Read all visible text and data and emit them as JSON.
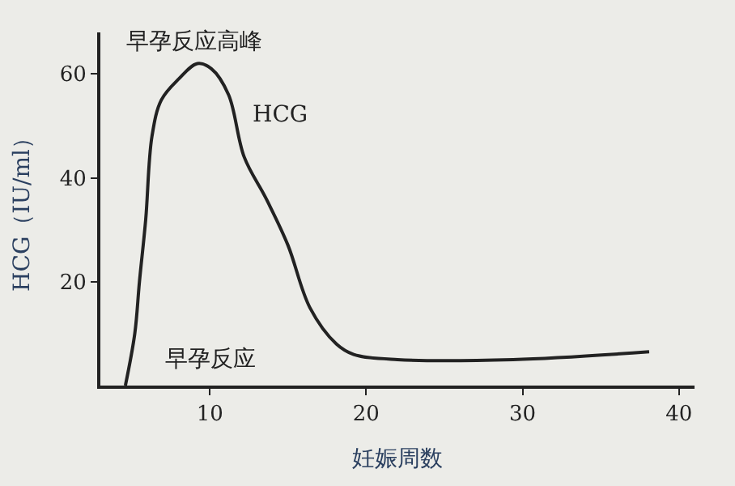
{
  "chart_data": {
    "type": "line",
    "xlabel": "妊娠周数",
    "ylabel": "HCG（IU/ml）",
    "x": [
      4.6,
      5.2,
      5.5,
      5.9,
      6.3,
      6.9,
      8.0,
      9.2,
      10.1,
      11.2,
      12.2,
      13.6,
      15.0,
      16.4,
      18.1,
      19.2,
      22,
      29.4,
      38.1
    ],
    "series": [
      {
        "name": null,
        "color": "#222222",
        "values": [
          0,
          10,
          20,
          32,
          48,
          55,
          59,
          62,
          61,
          56,
          44,
          36,
          27,
          15,
          8,
          6,
          5,
          5,
          6.5
        ]
      }
    ],
    "xlim": [
      3,
      41
    ],
    "ylim": [
      0,
      68
    ],
    "xticks": [
      10,
      20,
      30,
      40
    ],
    "yticks": [
      20,
      40,
      60
    ],
    "annotations": [
      "早孕反应高峰",
      "HCG",
      "早孕反应"
    ],
    "grid": false,
    "marker": "none",
    "line_style": "solid"
  }
}
